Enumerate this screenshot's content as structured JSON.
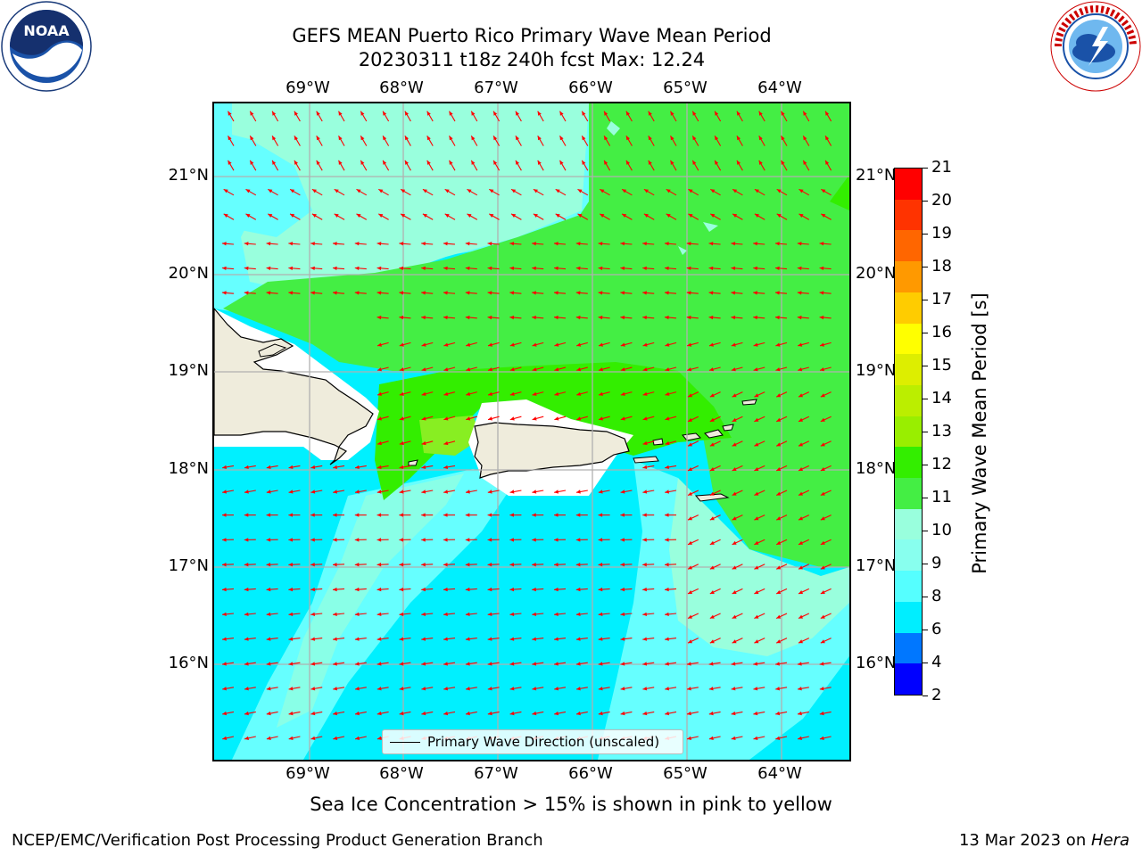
{
  "header": {
    "title_line1": "GEFS MEAN Puerto Rico Primary Wave Mean Period",
    "title_line2": "20230311 t18z 240h fcst   Max: 12.24"
  },
  "axes": {
    "lon_labels": [
      "69°W",
      "68°W",
      "67°W",
      "66°W",
      "65°W",
      "64°W"
    ],
    "lat_labels": [
      "21°N",
      "20°N",
      "19°N",
      "18°N",
      "17°N",
      "16°N"
    ]
  },
  "legend": {
    "label": "Primary Wave Direction (unscaled)",
    "line_color": "#000000"
  },
  "colorbar": {
    "title": "Primary Wave Mean Period [s]",
    "ticks": [
      "21",
      "20",
      "19",
      "18",
      "17",
      "16",
      "15",
      "14",
      "13",
      "12",
      "11",
      "10",
      "9",
      "8",
      "6",
      "4",
      "2"
    ],
    "colors": [
      "#ff0000",
      "#ff3300",
      "#ff6600",
      "#ff9900",
      "#ffcc00",
      "#ffff00",
      "#ddee00",
      "#bbee00",
      "#99ee00",
      "#33ee00",
      "#44ee44",
      "#99ffdd",
      "#88ffee",
      "#55ffff",
      "#00eeff",
      "#0077ff",
      "#0000ff"
    ]
  },
  "map_colors": {
    "cyan_6_8": "#00f0ff",
    "lightcyan_8_9": "#66ffff",
    "aqua_9_10": "#99ffdd",
    "green_10_11": "#44ee44",
    "green_11_12": "#33ee00",
    "yellowgreen_12_13": "#88ee22",
    "land": "#efecdc",
    "no_data": "#ffffff",
    "arrow": "#ff0000",
    "grid": "#b0b0b0"
  },
  "note": "Sea Ice Concentration > 15% is shown in pink to yellow",
  "footer": {
    "left": "NCEP/EMC/Verification Post Processing Product Generation Branch",
    "right_prefix": "13 Mar 2023 on ",
    "right_machine": "Hera"
  },
  "logos": {
    "left": "NOAA",
    "right_top": "NATIONAL WEATHER SERVICE",
    "left_ring": "NATIONAL OCEANIC AND ATMOSPHERIC ADMINISTRATION",
    "left_bottom": "U.S. DEPARTMENT OF COMMERCE"
  }
}
